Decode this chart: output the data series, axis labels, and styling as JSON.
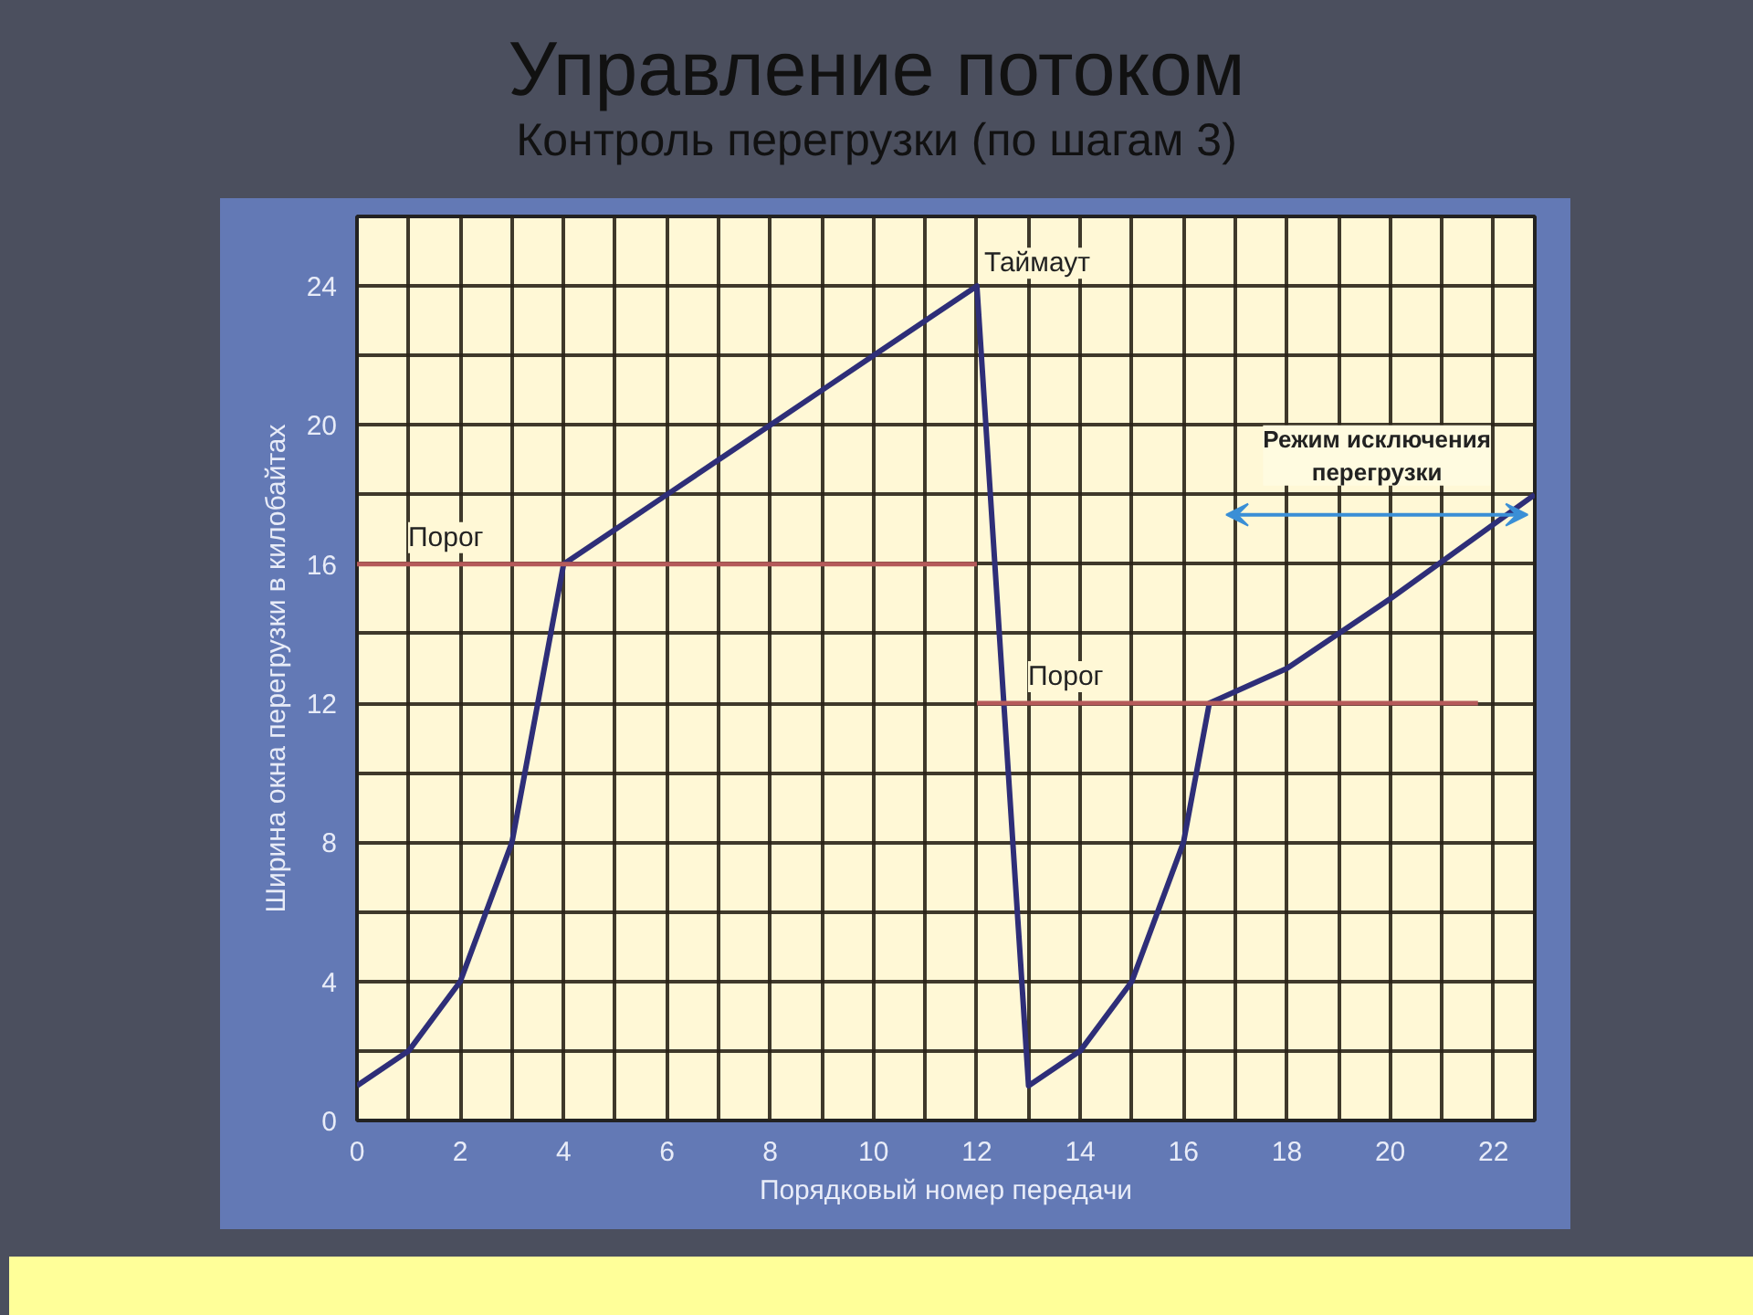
{
  "chart_data": {
    "type": "line",
    "title": "Управление потоком",
    "subtitle": "Контроль перегрузки (по шагам 3)",
    "xlabel": "Порядковый номер передачи",
    "ylabel": "Ширина окна перегрузки в килобайтах",
    "xlim": [
      0,
      22.8
    ],
    "ylim": [
      0,
      26
    ],
    "xticks": [
      0,
      2,
      4,
      6,
      8,
      10,
      12,
      14,
      16,
      18,
      20,
      22
    ],
    "yticks": [
      0,
      4,
      8,
      12,
      16,
      20,
      24
    ],
    "grid": true,
    "marker": "none",
    "line_style": "solid",
    "series": [
      {
        "color": "#2e2e78",
        "x": [
          0,
          1,
          2,
          3,
          4,
          5,
          6,
          7,
          8,
          9,
          10,
          11,
          12,
          13,
          14,
          15,
          16,
          16.5,
          18,
          20,
          22.8
        ],
        "values": [
          1,
          2,
          4,
          8,
          16,
          17,
          18,
          19,
          20,
          21,
          22,
          23,
          24,
          1,
          2,
          4,
          8,
          12,
          13,
          15,
          18
        ]
      },
      {
        "name": "Порог",
        "color": "#b55a5a",
        "x": [
          0,
          12
        ],
        "values": [
          16,
          16
        ]
      },
      {
        "name": "Порог",
        "color": "#b55a5a",
        "x": [
          12,
          21.7
        ],
        "values": [
          12,
          12
        ]
      }
    ],
    "annotations": [
      {
        "text": "Таймаут",
        "x": 12,
        "y": 24
      },
      "Режим исключения перегрузки"
    ]
  }
}
